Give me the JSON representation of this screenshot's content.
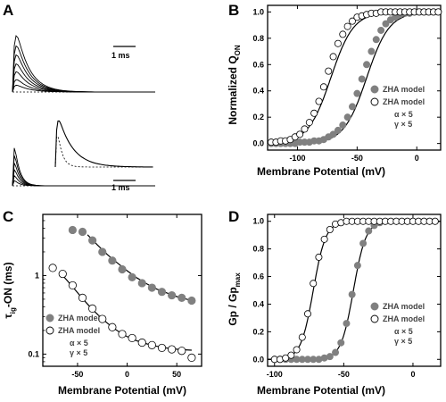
{
  "panels": {
    "A": {
      "letter": "A",
      "scale_top": "1 ms",
      "scale_bottom": "1 ms"
    },
    "B": {
      "letter": "B"
    },
    "C": {
      "letter": "C"
    },
    "D": {
      "letter": "D"
    }
  },
  "colors": {
    "filled_marker": "#808080",
    "open_marker_stroke": "#000000",
    "fit_line": "#000000"
  },
  "chart_data": [
    {
      "id": "A",
      "type": "line",
      "description_only_visual": true,
      "title": "",
      "xlabel": "",
      "ylabel": ""
    },
    {
      "id": "B",
      "type": "scatter",
      "xlabel": "Membrane Potential (mV)",
      "ylabel_main": "Normalized Q",
      "ylabel_sub": "ON",
      "xlim": [
        -125,
        20
      ],
      "ylim": [
        -0.05,
        1.05
      ],
      "xticks": [
        -100,
        -50,
        0
      ],
      "xtick_labels": [
        "-100",
        "-50",
        "0"
      ],
      "yticks": [
        0.0,
        0.2,
        0.4,
        0.6,
        0.8,
        1.0
      ],
      "ytick_labels": [
        "0.0",
        "0.2",
        "0.4",
        "0.6",
        "0.8",
        "1.0"
      ],
      "legend": [
        {
          "marker": "filled",
          "text": "ZHA model"
        },
        {
          "marker": "open",
          "text": "ZHA model"
        }
      ],
      "legend_extra": [
        "α × 5",
        "γ × 5"
      ],
      "series": [
        {
          "marker": "filled",
          "fit": {
            "v_half": -42,
            "slope": 9.5
          },
          "x": [
            -122,
            -118,
            -114,
            -110,
            -106,
            -102,
            -98,
            -94,
            -90,
            -86,
            -82,
            -78,
            -74,
            -70,
            -66,
            -62,
            -58,
            -54,
            -50,
            -46,
            -42,
            -38,
            -34,
            -30,
            -26,
            -22,
            -18,
            -14,
            -10,
            -6,
            -2,
            2,
            6,
            10,
            14,
            18
          ],
          "y": [
            0.0,
            0.0,
            0.0,
            0.0,
            0.0,
            0.0,
            0.01,
            0.01,
            0.01,
            0.02,
            0.02,
            0.03,
            0.05,
            0.07,
            0.1,
            0.14,
            0.2,
            0.28,
            0.38,
            0.49,
            0.6,
            0.7,
            0.79,
            0.86,
            0.91,
            0.94,
            0.96,
            0.98,
            0.99,
            0.99,
            1.0,
            1.0,
            1.0,
            1.0,
            1.0,
            1.0
          ]
        },
        {
          "marker": "open",
          "fit": {
            "v_half": -72,
            "slope": 9.5
          },
          "x": [
            -122,
            -118,
            -114,
            -110,
            -106,
            -102,
            -98,
            -94,
            -90,
            -86,
            -82,
            -78,
            -74,
            -70,
            -66,
            -62,
            -58,
            -54,
            -50,
            -46,
            -42,
            -38,
            -34,
            -30,
            -26,
            -22,
            -18,
            -14,
            -10,
            -6,
            -2,
            2,
            6,
            10,
            14,
            18
          ],
          "y": [
            0.01,
            0.01,
            0.02,
            0.02,
            0.03,
            0.05,
            0.07,
            0.11,
            0.16,
            0.23,
            0.32,
            0.43,
            0.55,
            0.66,
            0.76,
            0.83,
            0.89,
            0.93,
            0.96,
            0.97,
            0.98,
            0.99,
            0.99,
            1.0,
            1.0,
            1.0,
            1.0,
            1.0,
            1.0,
            1.0,
            1.0,
            1.0,
            1.0,
            1.0,
            1.0,
            1.0
          ]
        }
      ]
    },
    {
      "id": "C",
      "type": "scatter",
      "xlabel": "Membrane Potential (mV)",
      "ylabel_main": "τ",
      "ylabel_sub": "ig",
      "ylabel_rest": "-ON (ms)",
      "yscale": "log",
      "xlim": [
        -85,
        75
      ],
      "ylim": [
        0.07,
        6
      ],
      "xticks": [
        -50,
        0,
        50
      ],
      "xtick_labels": [
        "-50",
        "0",
        "50"
      ],
      "yticks": [
        0.1,
        1
      ],
      "ytick_labels": [
        "0.1",
        "1"
      ],
      "legend": [
        {
          "marker": "filled",
          "text": "ZHA model"
        },
        {
          "marker": "open",
          "text": "ZHA model"
        }
      ],
      "legend_extra": [
        "α × 5",
        "γ × 5"
      ],
      "series": [
        {
          "marker": "filled",
          "x": [
            -55,
            -45,
            -35,
            -25,
            -15,
            -5,
            5,
            15,
            25,
            35,
            45,
            55,
            65
          ],
          "y": [
            3.8,
            3.6,
            2.8,
            2.0,
            1.55,
            1.2,
            0.95,
            0.8,
            0.7,
            0.62,
            0.56,
            0.52,
            0.48
          ],
          "fit_x": [
            -40,
            -30,
            -20,
            -10,
            0,
            10,
            20,
            30,
            40,
            50,
            60,
            65
          ],
          "fit_y": [
            3.3,
            2.45,
            1.85,
            1.45,
            1.15,
            0.93,
            0.78,
            0.67,
            0.6,
            0.54,
            0.5,
            0.48
          ]
        },
        {
          "marker": "open",
          "x": [
            -75,
            -65,
            -55,
            -45,
            -35,
            -25,
            -15,
            -5,
            5,
            15,
            25,
            35,
            45,
            55,
            65
          ],
          "y": [
            1.25,
            1.05,
            0.75,
            0.52,
            0.38,
            0.28,
            0.22,
            0.18,
            0.16,
            0.14,
            0.13,
            0.12,
            0.115,
            0.11,
            0.09
          ],
          "fit_x": [
            -65,
            -55,
            -45,
            -35,
            -25,
            -15,
            -5,
            5,
            15,
            25,
            35,
            45,
            55,
            65
          ],
          "fit_y": [
            1.0,
            0.72,
            0.51,
            0.37,
            0.28,
            0.22,
            0.18,
            0.155,
            0.14,
            0.13,
            0.122,
            0.117,
            0.114,
            0.112
          ]
        }
      ]
    },
    {
      "id": "D",
      "type": "scatter",
      "xlabel": "Membrane Potential (mV)",
      "ylabel_main": "Gp / Gp",
      "ylabel_sub": "max",
      "xlim": [
        -105,
        20
      ],
      "ylim": [
        -0.05,
        1.05
      ],
      "xticks": [
        -100,
        -50,
        0
      ],
      "xtick_labels": [
        "-100",
        "-50",
        "0"
      ],
      "yticks": [
        0.0,
        0.2,
        0.4,
        0.6,
        0.8,
        1.0
      ],
      "ytick_labels": [
        "0.0",
        "0.2",
        "0.4",
        "0.6",
        "0.8",
        "1.0"
      ],
      "legend": [
        {
          "marker": "filled",
          "text": "ZHA model"
        },
        {
          "marker": "open",
          "text": "ZHA model"
        }
      ],
      "legend_extra": [
        "α × 5",
        "γ × 5"
      ],
      "series": [
        {
          "marker": "filled",
          "fit": {
            "v_half": -43,
            "slope": 4.5
          },
          "x": [
            -100,
            -96,
            -92,
            -88,
            -84,
            -80,
            -76,
            -72,
            -68,
            -64,
            -60,
            -56,
            -52,
            -48,
            -44,
            -40,
            -36,
            -32,
            -28,
            -24,
            -20,
            -16,
            -12,
            -8,
            -4,
            0,
            4,
            8,
            12,
            16
          ],
          "y": [
            0.0,
            0.0,
            0.0,
            0.0,
            0.0,
            0.0,
            0.0,
            0.0,
            0.0,
            0.01,
            0.02,
            0.05,
            0.12,
            0.26,
            0.47,
            0.68,
            0.84,
            0.93,
            0.97,
            0.99,
            1.0,
            1.0,
            1.0,
            1.0,
            1.0,
            1.0,
            1.0,
            1.0,
            1.0,
            1.0
          ]
        },
        {
          "marker": "open",
          "fit": {
            "v_half": -72,
            "slope": 4.5
          },
          "x": [
            -100,
            -96,
            -92,
            -88,
            -84,
            -80,
            -76,
            -72,
            -68,
            -64,
            -60,
            -56,
            -52,
            -48,
            -44,
            -40,
            -36,
            -32,
            -28,
            -24,
            -20,
            -16,
            -12,
            -8,
            -4,
            0,
            4,
            8,
            12,
            16
          ],
          "y": [
            0.0,
            0.0,
            0.01,
            0.03,
            0.07,
            0.16,
            0.33,
            0.55,
            0.74,
            0.87,
            0.94,
            0.98,
            0.99,
            1.0,
            1.0,
            1.0,
            1.0,
            1.0,
            1.0,
            1.0,
            1.0,
            1.0,
            1.0,
            1.0,
            1.0,
            1.0,
            1.0,
            1.0,
            1.0,
            1.0
          ]
        }
      ]
    }
  ]
}
